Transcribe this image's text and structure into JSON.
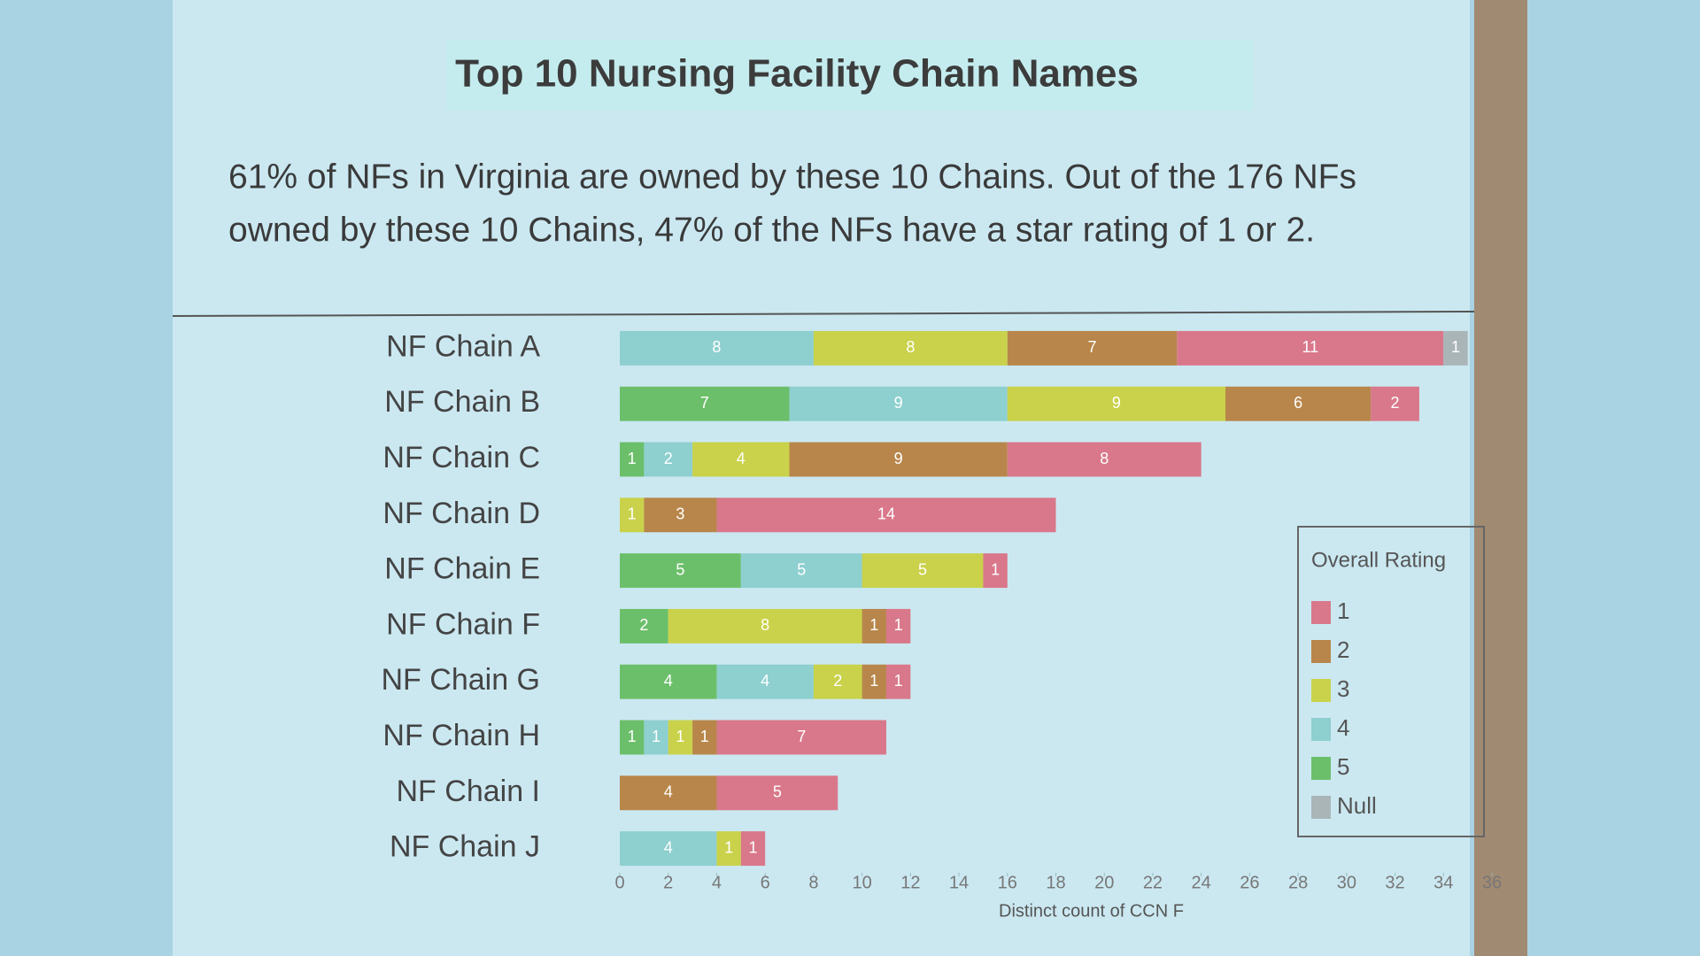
{
  "chart_data": {
    "type": "stacked-bar-horizontal",
    "title": "Top 10 Nursing Facility Chain Names",
    "subtitle": [
      "61% of NFs in Virginia are owned by these 10 Chains. Out of the 176 NFs",
      "owned by these 10 Chains, 47% of the NFs have a star rating of 1 or 2."
    ],
    "categories": [
      "NF Chain A",
      "NF Chain B",
      "NF Chain C",
      "NF Chain D",
      "NF Chain E",
      "NF Chain F",
      "NF Chain G",
      "NF Chain H",
      "NF Chain I",
      "NF Chain J"
    ],
    "legend_title": "Overall Rating",
    "legend_position": "right",
    "series": [
      {
        "name": "1",
        "color": "#d9788a",
        "values": [
          11,
          2,
          8,
          14,
          1,
          1,
          1,
          7,
          5,
          1
        ]
      },
      {
        "name": "2",
        "color": "#b8864a",
        "values": [
          7,
          6,
          9,
          3,
          null,
          1,
          1,
          1,
          4,
          null
        ]
      },
      {
        "name": "3",
        "color": "#c9d24a",
        "values": [
          8,
          9,
          4,
          1,
          5,
          8,
          2,
          1,
          null,
          1
        ]
      },
      {
        "name": "4",
        "color": "#8ecfcf",
        "values": [
          8,
          9,
          2,
          null,
          5,
          null,
          4,
          1,
          null,
          4
        ]
      },
      {
        "name": "5",
        "color": "#6cbf6a",
        "values": [
          null,
          7,
          1,
          null,
          5,
          2,
          4,
          1,
          null,
          null
        ]
      },
      {
        "name": "Null",
        "color": "#aab5b8",
        "values": [
          1,
          null,
          null,
          null,
          null,
          null,
          null,
          null,
          null,
          null
        ]
      }
    ],
    "xlim": [
      0,
      36
    ],
    "xticks": [
      0,
      2,
      4,
      6,
      8,
      10,
      12,
      14,
      16,
      18,
      20,
      22,
      24,
      26,
      28,
      30,
      32,
      34,
      36
    ],
    "xlabel": "Distinct count of CCN F",
    "grid": false
  }
}
